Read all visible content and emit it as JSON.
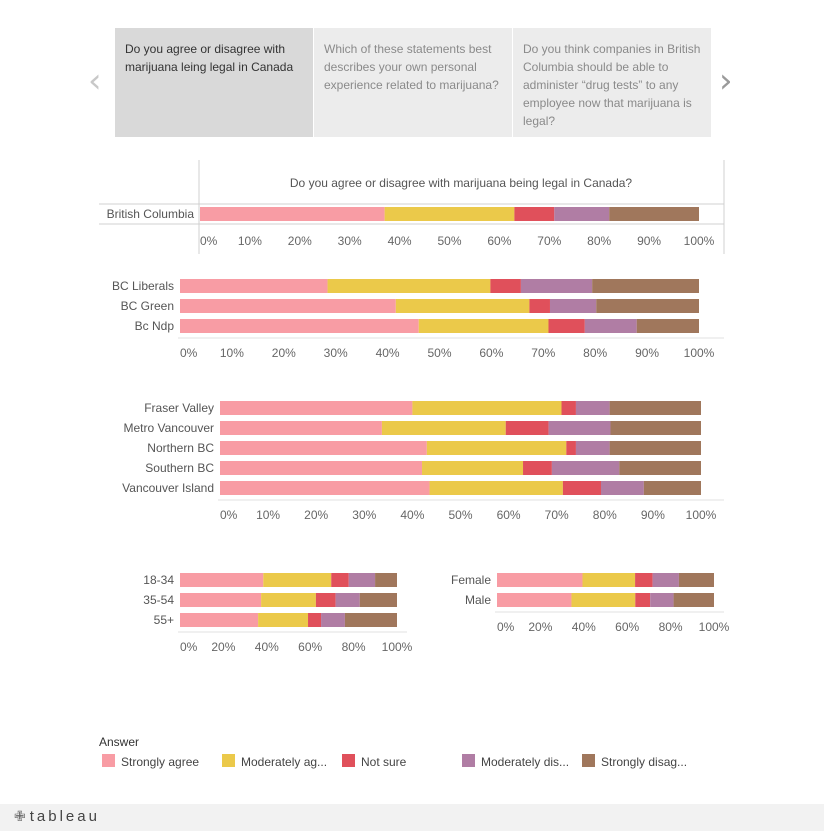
{
  "story": {
    "points": [
      "Do you agree or disagree with marijuana leing legal in Canada",
      "Which of these statements best describes your own personal experience related to marijuana?",
      " Do you think companies in British Columbia should be able to administer “drug tests” to any employee now that marijuana is legal?"
    ],
    "active_index": 0,
    "prev_icon": "chevron-left-icon",
    "next_icon": "chevron-right-icon"
  },
  "legend": {
    "title": "Answer",
    "items": [
      {
        "label": "Strongly agree",
        "color": "#f89ca4"
      },
      {
        "label": "Moderately ag...",
        "color": "#ebc94a"
      },
      {
        "label": "Not sure",
        "color": "#e0505b"
      },
      {
        "label": "Moderately dis...",
        "color": "#b07da4"
      },
      {
        "label": "Strongly disag...",
        "color": "#a0775c"
      }
    ]
  },
  "footer": {
    "brand": "tableau"
  },
  "chart_data": [
    {
      "type": "bar",
      "stacked": true,
      "orientation": "horizontal",
      "title": "Do you agree or disagree with marijuana being legal in Canada?",
      "categories": [
        "British Columbia"
      ],
      "series": [
        {
          "name": "Strongly agree",
          "values": [
            37
          ]
        },
        {
          "name": "Moderately ag...",
          "values": [
            26
          ]
        },
        {
          "name": "Not sure",
          "values": [
            8
          ]
        },
        {
          "name": "Moderately dis...",
          "values": [
            11
          ]
        },
        {
          "name": "Strongly disag...",
          "values": [
            18
          ]
        }
      ],
      "xlim": [
        0,
        100
      ],
      "xticks": [
        "0%",
        "10%",
        "20%",
        "30%",
        "40%",
        "50%",
        "60%",
        "70%",
        "80%",
        "90%",
        "100%"
      ]
    },
    {
      "type": "bar",
      "stacked": true,
      "orientation": "horizontal",
      "categories": [
        "BC Liberals",
        "BC Green",
        "Bc Ndp"
      ],
      "series": [
        {
          "name": "Strongly agree",
          "values": [
            29,
            42,
            46
          ]
        },
        {
          "name": "Moderately ag...",
          "values": [
            32,
            26,
            25
          ]
        },
        {
          "name": "Not sure",
          "values": [
            6,
            4,
            7
          ]
        },
        {
          "name": "Moderately dis...",
          "values": [
            14,
            9,
            10
          ]
        },
        {
          "name": "Strongly disag...",
          "values": [
            21,
            20,
            12
          ]
        }
      ],
      "xlim": [
        0,
        100
      ],
      "xticks": [
        "0%",
        "10%",
        "20%",
        "30%",
        "40%",
        "50%",
        "60%",
        "70%",
        "80%",
        "90%",
        "100%"
      ]
    },
    {
      "type": "bar",
      "stacked": true,
      "orientation": "horizontal",
      "categories": [
        "Fraser Valley",
        "Metro Vancouver",
        "Northern BC",
        "Southern BC",
        "Vancouver Island"
      ],
      "series": [
        {
          "name": "Strongly agree",
          "values": [
            40,
            34,
            43,
            42,
            44
          ]
        },
        {
          "name": "Moderately ag...",
          "values": [
            31,
            26,
            29,
            21,
            28
          ]
        },
        {
          "name": "Not sure",
          "values": [
            3,
            9,
            2,
            6,
            8
          ]
        },
        {
          "name": "Moderately dis...",
          "values": [
            7,
            13,
            7,
            14,
            9
          ]
        },
        {
          "name": "Strongly disag...",
          "values": [
            19,
            19,
            19,
            17,
            12
          ]
        }
      ],
      "xlim": [
        0,
        100
      ],
      "xticks": [
        "0%",
        "10%",
        "20%",
        "30%",
        "40%",
        "50%",
        "60%",
        "70%",
        "80%",
        "90%",
        "100%"
      ]
    },
    {
      "type": "bar",
      "stacked": true,
      "orientation": "horizontal",
      "categories": [
        "18-34",
        "35-54",
        "55+"
      ],
      "series": [
        {
          "name": "Strongly agree",
          "values": [
            38,
            37,
            36
          ]
        },
        {
          "name": "Moderately ag...",
          "values": [
            31,
            25,
            23
          ]
        },
        {
          "name": "Not sure",
          "values": [
            8,
            9,
            6
          ]
        },
        {
          "name": "Moderately dis...",
          "values": [
            12,
            11,
            11
          ]
        },
        {
          "name": "Strongly disag...",
          "values": [
            10,
            17,
            24
          ]
        }
      ],
      "xlim": [
        0,
        100
      ],
      "xticks": [
        "0%",
        "20%",
        "40%",
        "60%",
        "80%",
        "100%"
      ]
    },
    {
      "type": "bar",
      "stacked": true,
      "orientation": "horizontal",
      "categories": [
        "Female",
        "Male"
      ],
      "series": [
        {
          "name": "Strongly agree",
          "values": [
            39,
            35
          ]
        },
        {
          "name": "Moderately ag...",
          "values": [
            24,
            30
          ]
        },
        {
          "name": "Not sure",
          "values": [
            8,
            7
          ]
        },
        {
          "name": "Moderately dis...",
          "values": [
            12,
            11
          ]
        },
        {
          "name": "Strongly disag...",
          "values": [
            16,
            19
          ]
        }
      ],
      "xlim": [
        0,
        100
      ],
      "xticks": [
        "0%",
        "20%",
        "40%",
        "60%",
        "80%",
        "100%"
      ]
    }
  ]
}
